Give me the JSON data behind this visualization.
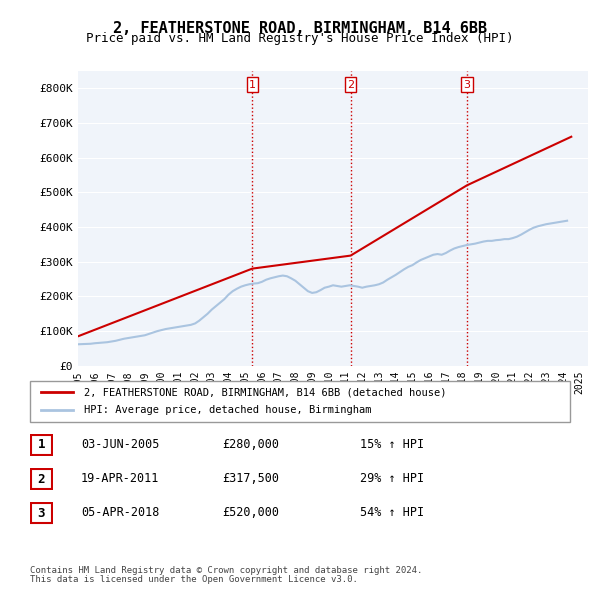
{
  "title": "2, FEATHERSTONE ROAD, BIRMINGHAM, B14 6BB",
  "subtitle": "Price paid vs. HM Land Registry's House Price Index (HPI)",
  "property_label": "2, FEATHERSTONE ROAD, BIRMINGHAM, B14 6BB (detached house)",
  "hpi_label": "HPI: Average price, detached house, Birmingham",
  "footnote1": "Contains HM Land Registry data © Crown copyright and database right 2024.",
  "footnote2": "This data is licensed under the Open Government Licence v3.0.",
  "transactions": [
    {
      "num": 1,
      "date": "03-JUN-2005",
      "price": 280000,
      "pct": "15%",
      "dir": "↑"
    },
    {
      "num": 2,
      "date": "19-APR-2011",
      "price": 317500,
      "pct": "29%",
      "dir": "↑"
    },
    {
      "num": 3,
      "date": "05-APR-2018",
      "price": 520000,
      "pct": "54%",
      "dir": "↑"
    }
  ],
  "vline_years": [
    2005.42,
    2011.3,
    2018.26
  ],
  "ylim": [
    0,
    850000
  ],
  "yticks": [
    0,
    100000,
    200000,
    300000,
    400000,
    500000,
    600000,
    700000,
    800000
  ],
  "ytick_labels": [
    "£0",
    "£100K",
    "£200K",
    "£300K",
    "£400K",
    "£500K",
    "£600K",
    "£700K",
    "£800K"
  ],
  "prop_color": "#cc0000",
  "hpi_color": "#aac4e0",
  "vline_color": "#cc0000",
  "background_color": "#ffffff",
  "plot_bg_color": "#f0f4fa",
  "grid_color": "#ffffff",
  "hpi_data": {
    "years": [
      1995.0,
      1995.25,
      1995.5,
      1995.75,
      1996.0,
      1996.25,
      1996.5,
      1996.75,
      1997.0,
      1997.25,
      1997.5,
      1997.75,
      1998.0,
      1998.25,
      1998.5,
      1998.75,
      1999.0,
      1999.25,
      1999.5,
      1999.75,
      2000.0,
      2000.25,
      2000.5,
      2000.75,
      2001.0,
      2001.25,
      2001.5,
      2001.75,
      2002.0,
      2002.25,
      2002.5,
      2002.75,
      2003.0,
      2003.25,
      2003.5,
      2003.75,
      2004.0,
      2004.25,
      2004.5,
      2004.75,
      2005.0,
      2005.25,
      2005.5,
      2005.75,
      2006.0,
      2006.25,
      2006.5,
      2006.75,
      2007.0,
      2007.25,
      2007.5,
      2007.75,
      2008.0,
      2008.25,
      2008.5,
      2008.75,
      2009.0,
      2009.25,
      2009.5,
      2009.75,
      2010.0,
      2010.25,
      2010.5,
      2010.75,
      2011.0,
      2011.25,
      2011.5,
      2011.75,
      2012.0,
      2012.25,
      2012.5,
      2012.75,
      2013.0,
      2013.25,
      2013.5,
      2013.75,
      2014.0,
      2014.25,
      2014.5,
      2014.75,
      2015.0,
      2015.25,
      2015.5,
      2015.75,
      2016.0,
      2016.25,
      2016.5,
      2016.75,
      2017.0,
      2017.25,
      2017.5,
      2017.75,
      2018.0,
      2018.25,
      2018.5,
      2018.75,
      2019.0,
      2019.25,
      2019.5,
      2019.75,
      2020.0,
      2020.25,
      2020.5,
      2020.75,
      2021.0,
      2021.25,
      2021.5,
      2021.75,
      2022.0,
      2022.25,
      2022.5,
      2022.75,
      2023.0,
      2023.25,
      2023.5,
      2023.75,
      2024.0,
      2024.25
    ],
    "values": [
      62000,
      62500,
      63000,
      63500,
      65000,
      66000,
      67000,
      68000,
      70000,
      72000,
      75000,
      78000,
      80000,
      82000,
      84000,
      86000,
      88000,
      92000,
      96000,
      100000,
      103000,
      106000,
      108000,
      110000,
      112000,
      114000,
      116000,
      118000,
      122000,
      130000,
      140000,
      150000,
      162000,
      172000,
      182000,
      192000,
      205000,
      215000,
      222000,
      228000,
      232000,
      235000,
      237000,
      238000,
      242000,
      248000,
      252000,
      255000,
      258000,
      260000,
      258000,
      252000,
      245000,
      235000,
      225000,
      215000,
      210000,
      212000,
      218000,
      225000,
      228000,
      232000,
      230000,
      228000,
      230000,
      232000,
      230000,
      228000,
      225000,
      228000,
      230000,
      232000,
      235000,
      240000,
      248000,
      255000,
      262000,
      270000,
      278000,
      285000,
      290000,
      298000,
      305000,
      310000,
      315000,
      320000,
      322000,
      320000,
      325000,
      332000,
      338000,
      342000,
      345000,
      348000,
      350000,
      352000,
      355000,
      358000,
      360000,
      360000,
      362000,
      363000,
      365000,
      365000,
      368000,
      372000,
      378000,
      385000,
      392000,
      398000,
      402000,
      405000,
      408000,
      410000,
      412000,
      414000,
      416000,
      418000
    ]
  },
  "prop_data": {
    "years": [
      1995.0,
      2005.42,
      2011.3,
      2018.26,
      2024.5
    ],
    "values": [
      85000,
      280000,
      317500,
      520000,
      660000
    ]
  }
}
